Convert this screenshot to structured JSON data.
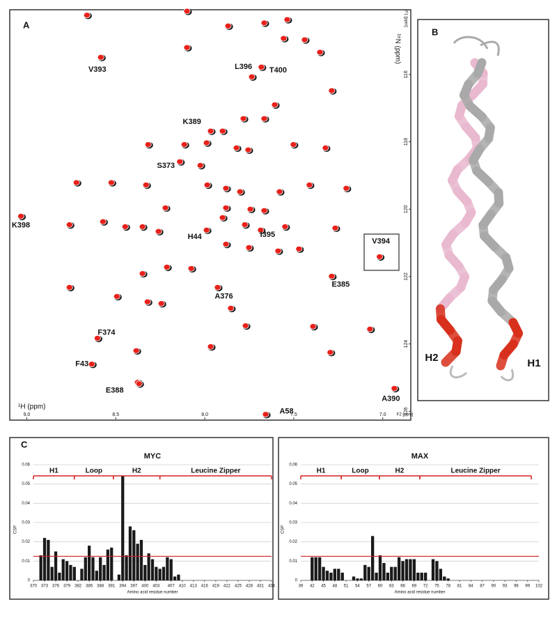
{
  "chart_data": [
    {
      "type": "scatter",
      "panel": "A",
      "x_label": "¹H (ppm)",
      "y_label": "¹⁵N (ppm)",
      "x_unit_label": "F2 [ppm]",
      "y_unit_label": "F1 [ppm]",
      "xlim": [
        9.08,
        6.87
      ],
      "ylim": [
        114.1,
        126.2
      ],
      "xticks": [
        {
          "value": 9,
          "label": "9.0"
        },
        8.5,
        {
          "value": 8,
          "label": "8.0"
        },
        7.5,
        {
          "value": 7,
          "label": "7.0"
        }
      ],
      "yticks": [
        116,
        118,
        120,
        122,
        124,
        126
      ],
      "series": [
        {
          "color": "#e8211a",
          "edge_color": "#1a1a1a",
          "x": [
            8.662,
            8.1,
            7.869,
            7.666,
            7.537,
            7.439,
            7.353,
            7.557,
            8.1,
            7.287,
            7.607,
            7.666,
            7.783,
            7.967,
            8.115,
            8.318,
            7.99,
            7.822,
            7.756,
            7.502,
            7.322,
            8.025,
            8.721,
            8.525,
            8.33,
            7.986,
            7.881,
            7.802,
            7.58,
            7.412,
            7.205,
            8.221,
            7.881,
            7.744,
            7.666,
            8.76,
            8.572,
            8.447,
            8.35,
            8.26,
            7.9,
            7.775,
            7.549,
            7.267,
            7.881,
            7.752,
            7.588,
            7.471,
            8.213,
            8.076,
            8.35,
            8.76,
            8.494,
            8.322,
            8.244,
            7.854,
            7.771,
            7.392,
            7.072,
            8.385,
            7.967,
            8.377,
            7.295
          ],
          "y": [
            114.24,
            114.12,
            114.56,
            114.47,
            114.37,
            114.97,
            115.34,
            114.93,
            115.2,
            116.48,
            116.9,
            117.31,
            117.31,
            117.68,
            118.08,
            118.08,
            118.03,
            118.18,
            118.24,
            118.08,
            118.18,
            118.7,
            119.21,
            119.21,
            119.28,
            119.28,
            119.38,
            119.48,
            119.48,
            119.28,
            119.38,
            119.96,
            119.96,
            120.0,
            120.04,
            120.46,
            120.37,
            120.52,
            120.52,
            120.66,
            120.25,
            120.46,
            120.52,
            120.56,
            121.04,
            121.14,
            121.24,
            121.18,
            121.72,
            121.76,
            121.91,
            122.32,
            122.59,
            122.75,
            122.8,
            122.94,
            123.46,
            123.48,
            123.56,
            124.2,
            124.08,
            125.14,
            124.25
          ]
        },
        {
          "color": "#e8211a",
          "edge_color": "#1a1a1a",
          "x": [
            8.584,
            7.736,
            7.682,
            7.9,
            8.14,
            9.033,
            7.99,
            7.686,
            7.018,
            7.287,
            7.928,
            8.603,
            8.635,
            8.369,
            6.935,
            7.658
          ],
          "y": [
            115.49,
            116.07,
            115.78,
            117.68,
            118.59,
            120.21,
            120.62,
            120.62,
            121.41,
            121.99,
            122.32,
            123.83,
            124.6,
            125.18,
            125.32,
            126.09
          ],
          "labels": [
            "V393",
            "L396",
            "T400",
            "K389",
            "S373",
            "K398",
            "H44",
            "I395",
            "V394",
            "E385",
            "A376",
            "F374",
            "F43",
            "E388",
            "A390",
            "A58"
          ]
        }
      ]
    },
    {
      "type": "bar",
      "panel": "C",
      "title": "MYC",
      "y_label": "CSP",
      "x_label": "Amino acid residue number",
      "color": "#1a1a1a",
      "grid": true,
      "threshold": 0.0125,
      "threshold_color": "#d42020",
      "xlim": [
        370,
        434
      ],
      "ylim": [
        0,
        0.06
      ],
      "xticks": [
        370,
        373,
        376,
        379,
        382,
        385,
        388,
        391,
        394,
        397,
        400,
        403,
        407,
        410,
        413,
        416,
        419,
        422,
        425,
        428,
        431,
        434
      ],
      "yticks": [
        0,
        0.01,
        0.02,
        0.03,
        0.04,
        0.05,
        0.06
      ],
      "regions": [
        {
          "label": "H1",
          "start": 370,
          "end": 381
        },
        {
          "label": "Loop",
          "start": 381,
          "end": 391.5
        },
        {
          "label": "H2",
          "start": 391.5,
          "end": 404
        },
        {
          "label": "Leucine Zipper",
          "start": 404,
          "end": 434
        }
      ],
      "x": [
        372,
        373,
        374,
        375,
        376,
        377,
        378,
        379,
        380,
        381,
        382,
        383,
        384,
        385,
        386,
        387,
        388,
        389,
        390,
        391,
        392,
        393,
        394,
        395,
        396,
        397,
        398,
        399,
        400,
        401,
        402,
        403,
        404,
        405,
        406,
        407,
        408,
        409,
        410
      ],
      "values": [
        0.013,
        0.022,
        0.021,
        0.007,
        0.015,
        0.004,
        0.011,
        0.01,
        0.008,
        0.007,
        0,
        0.006,
        0.012,
        0.018,
        0.012,
        0.005,
        0.012,
        0.008,
        0.016,
        0.017,
        0,
        0.003,
        0.054,
        0.013,
        0.028,
        0.026,
        0.019,
        0.021,
        0.008,
        0.014,
        0.011,
        0.007,
        0.006,
        0.007,
        0.012,
        0.011,
        0.002,
        0.003,
        0
      ]
    },
    {
      "type": "bar",
      "title": "MAX",
      "y_label": "CSP",
      "x_label": "Amino acid residue number",
      "color": "#1a1a1a",
      "grid": true,
      "threshold": 0.0125,
      "threshold_color": "#d42020",
      "xlim": [
        39,
        102
      ],
      "ylim": [
        0,
        0.06
      ],
      "xticks": [
        39,
        42,
        45,
        48,
        51,
        54,
        57,
        60,
        63,
        66,
        69,
        72,
        75,
        78,
        81,
        84,
        87,
        90,
        93,
        96,
        99,
        102
      ],
      "yticks": [
        0,
        0.01,
        0.02,
        0.03,
        0.04,
        0.05,
        0.06
      ],
      "regions": [
        {
          "label": "H1",
          "start": 39,
          "end": 49.7
        },
        {
          "label": "Loop",
          "start": 49.7,
          "end": 59.8
        },
        {
          "label": "H2",
          "start": 59.8,
          "end": 70.5
        },
        {
          "label": "Leucine Zipper",
          "start": 70.5,
          "end": 100
        }
      ],
      "x": [
        42,
        43,
        44,
        45,
        46,
        47,
        48,
        49,
        50,
        51,
        52,
        53,
        54,
        55,
        56,
        57,
        58,
        59,
        60,
        61,
        62,
        63,
        64,
        65,
        66,
        67,
        68,
        69,
        70,
        71,
        72,
        73,
        74,
        75,
        76,
        77,
        78
      ],
      "values": [
        0.012,
        0.012,
        0.012,
        0.007,
        0.005,
        0.004,
        0.006,
        0.006,
        0.004,
        0,
        0,
        0.002,
        0.001,
        0.001,
        0.008,
        0.007,
        0.023,
        0.004,
        0.013,
        0.009,
        0.004,
        0.007,
        0.007,
        0.012,
        0.01,
        0.011,
        0.011,
        0.011,
        0.004,
        0.004,
        0.004,
        0,
        0.011,
        0.01,
        0.006,
        0.002,
        0.001
      ]
    }
  ],
  "structure": {
    "panel": "B",
    "labels": [
      "H2",
      "H1"
    ]
  }
}
